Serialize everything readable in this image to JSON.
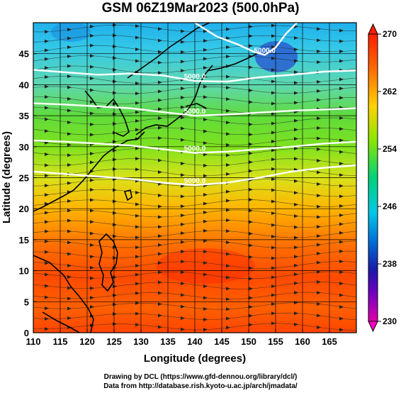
{
  "title": "GSM 06Z19Mar2023 (500.0hPa)",
  "map": {
    "lon_range": [
      110,
      170
    ],
    "lat_range": [
      0,
      50
    ],
    "xlabel": "Longitude (degrees)",
    "ylabel": "Latitude  (degrees)",
    "xticks": [
      "110",
      "115",
      "120",
      "125",
      "130",
      "135",
      "140",
      "145",
      "150",
      "155",
      "160",
      "165"
    ],
    "yticks": [
      "0",
      "5",
      "10",
      "15",
      "20",
      "25",
      "30",
      "35",
      "40",
      "45"
    ],
    "contour_label": "5000.0",
    "contours": [
      {
        "level": "5000.0",
        "points": [
          [
            110,
            42.4
          ],
          [
            116,
            42
          ],
          [
            122,
            41.6
          ],
          [
            128,
            41.8
          ],
          [
            134,
            41.5
          ],
          [
            140,
            40.6
          ],
          [
            146,
            40.5
          ],
          [
            152,
            41.2
          ],
          [
            158,
            41.6
          ],
          [
            164,
            42.1
          ],
          [
            170,
            42.3
          ]
        ]
      },
      {
        "level": "5000.0",
        "points": [
          [
            110,
            37
          ],
          [
            116,
            36.8
          ],
          [
            122,
            36.5
          ],
          [
            128,
            36.2
          ],
          [
            134,
            35.6
          ],
          [
            140,
            35
          ],
          [
            146,
            35.2
          ],
          [
            152,
            35.5
          ],
          [
            158,
            35.8
          ],
          [
            164,
            36
          ],
          [
            170,
            36.2
          ]
        ]
      },
      {
        "level": "5000.0",
        "points": [
          [
            110,
            31
          ],
          [
            116,
            30.8
          ],
          [
            122,
            30.5
          ],
          [
            128,
            30.2
          ],
          [
            134,
            29.6
          ],
          [
            140,
            29
          ],
          [
            146,
            29.2
          ],
          [
            152,
            29.6
          ],
          [
            158,
            30
          ],
          [
            164,
            30.5
          ],
          [
            170,
            30.8
          ]
        ]
      },
      {
        "level": "5000.0",
        "points": [
          [
            110,
            26
          ],
          [
            116,
            25.6
          ],
          [
            122,
            25.2
          ],
          [
            128,
            24.8
          ],
          [
            134,
            24.2
          ],
          [
            140,
            23.8
          ],
          [
            146,
            24.2
          ],
          [
            152,
            25
          ],
          [
            158,
            26
          ],
          [
            164,
            26.6
          ],
          [
            170,
            27
          ]
        ]
      },
      {
        "level": "5000.0",
        "points": [
          [
            140,
            50
          ],
          [
            144,
            47.8
          ],
          [
            148,
            46.5
          ],
          [
            151,
            45.3
          ],
          [
            153,
            44.8
          ],
          [
            155,
            46
          ],
          [
            157,
            48.3
          ],
          [
            159,
            50
          ]
        ]
      }
    ]
  },
  "colorbar": {
    "ticks": [
      "270",
      "262",
      "254",
      "246",
      "238",
      "230"
    ],
    "colors": [
      "#ff1e00",
      "#ff7a00",
      "#ffd200",
      "#7ae600",
      "#00d17a",
      "#00c8e6",
      "#0070d8",
      "#1a1aa8",
      "#b000c8",
      "#ff00a0"
    ]
  },
  "temperature_field": {
    "unit": "K",
    "bands": [
      {
        "lat": 50,
        "value": 246
      },
      {
        "lat": 45,
        "value": 247
      },
      {
        "lat": 40,
        "value": 251
      },
      {
        "lat": 35,
        "value": 254
      },
      {
        "lat": 30,
        "value": 257
      },
      {
        "lat": 25,
        "value": 260
      },
      {
        "lat": 20,
        "value": 263
      },
      {
        "lat": 15,
        "value": 266
      },
      {
        "lat": 10,
        "value": 267
      },
      {
        "lat": 5,
        "value": 266
      },
      {
        "lat": 0,
        "value": 267
      }
    ]
  },
  "credits": {
    "line1": "Drawing by DCL (https://www.gfd-dennou.org/library/dcl/)",
    "line2": "Data from http://database.rish.kyoto-u.ac.jp/arch/jmadata/"
  }
}
